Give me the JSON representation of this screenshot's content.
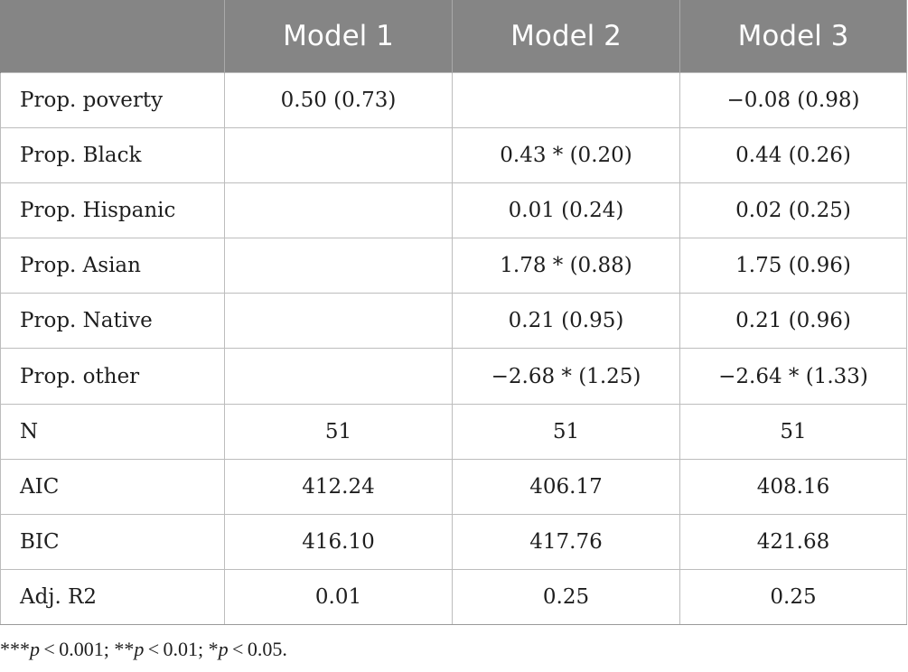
{
  "table": {
    "headers": [
      "",
      "Model 1",
      "Model 2",
      "Model 3"
    ],
    "rows": [
      {
        "label": "Prop. poverty",
        "m1": "0.50 (0.73)",
        "m2": "",
        "m3": "−0.08 (0.98)"
      },
      {
        "label": "Prop. Black",
        "m1": "",
        "m2": "0.43 * (0.20)",
        "m3": "0.44 (0.26)"
      },
      {
        "label": "Prop. Hispanic",
        "m1": "",
        "m2": "0.01 (0.24)",
        "m3": "0.02 (0.25)"
      },
      {
        "label": "Prop. Asian",
        "m1": "",
        "m2": "1.78 * (0.88)",
        "m3": "1.75 (0.96)"
      },
      {
        "label": "Prop. Native",
        "m1": "",
        "m2": "0.21 (0.95)",
        "m3": "0.21 (0.96)"
      },
      {
        "label": "Prop. other",
        "m1": "",
        "m2": "−2.68 * (1.25)",
        "m3": "−2.64 * (1.33)"
      },
      {
        "label": "N",
        "m1": "51",
        "m2": "51",
        "m3": "51"
      },
      {
        "label": "AIC",
        "m1": "412.24",
        "m2": "406.17",
        "m3": "408.16"
      },
      {
        "label": "BIC",
        "m1": "416.10",
        "m2": "417.76",
        "m3": "421.68"
      },
      {
        "label": "Adj. R2",
        "m1": "0.01",
        "m2": "0.25",
        "m3": "0.25"
      }
    ]
  },
  "footnote": {
    "p1_prefix": "***",
    "p1_var": "p",
    "p1_rest": " < 0.001; ",
    "p2_prefix": "**",
    "p2_var": "p",
    "p2_rest": " < 0.01; ",
    "p3_prefix": "*",
    "p3_var": "p",
    "p3_rest": " < 0.05."
  },
  "colors": {
    "header_bg": "#858585",
    "header_text": "#ffffff",
    "grid": "#bdbdbd"
  }
}
